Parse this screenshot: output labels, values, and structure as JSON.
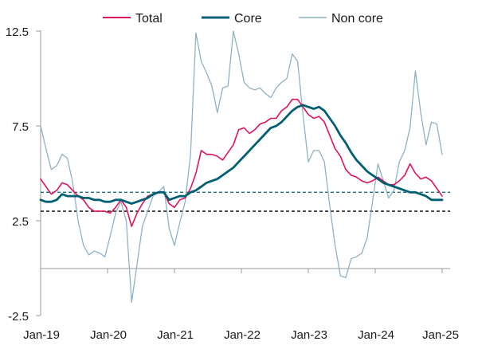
{
  "chart_data": {
    "type": "line",
    "title": "",
    "xlabel": "",
    "ylabel": "",
    "x_start": "2019-01",
    "x_end": "2025-01",
    "x_ticks": [
      "Jan-19",
      "Jan-20",
      "Jan-21",
      "Jan-22",
      "Jan-23",
      "Jan-24",
      "Jan-25"
    ],
    "y_ticks": [
      "12.5",
      "7.5",
      "2.5",
      "-2.5"
    ],
    "y_tick_values": [
      12.5,
      7.5,
      2.5,
      -2.5
    ],
    "ylim": [
      -2.5,
      12.5
    ],
    "legend": "top",
    "grid": false,
    "colors": {
      "total": "#e0115f",
      "core": "#005f73",
      "non_core": "#8fb1c4",
      "dashed_teal": "#1f6f7f",
      "dashed_black": "#000000"
    },
    "reference_lines": [
      {
        "y": 4.0,
        "style": "dashed",
        "color": "#1f6f7f"
      },
      {
        "y": 3.0,
        "style": "dashed",
        "color": "#000000"
      }
    ],
    "series": [
      {
        "name": "Total",
        "color": "#e0115f",
        "values": [
          4.7,
          4.3,
          3.9,
          4.1,
          4.5,
          4.4,
          4.1,
          3.8,
          3.6,
          3.2,
          3.0,
          3.0,
          3.0,
          2.9,
          3.2,
          3.6,
          3.2,
          2.2,
          2.9,
          3.4,
          3.8,
          3.9,
          4.0,
          4.0,
          3.4,
          3.2,
          3.6,
          3.7,
          4.2,
          5.0,
          6.2,
          6.0,
          6.0,
          5.9,
          5.7,
          6.1,
          6.5,
          7.3,
          7.4,
          7.1,
          7.3,
          7.6,
          7.7,
          7.9,
          7.9,
          8.3,
          8.5,
          8.9,
          8.9,
          8.5,
          8.1,
          7.9,
          8.0,
          7.7,
          7.0,
          6.3,
          5.9,
          5.2,
          4.9,
          4.8,
          4.6,
          4.5,
          4.6,
          4.8,
          4.6,
          4.4,
          4.4,
          4.6,
          4.9,
          5.5,
          5.0,
          4.7,
          4.8,
          4.6,
          4.2,
          3.8
        ]
      },
      {
        "name": "Core",
        "color": "#005f73",
        "values": [
          3.6,
          3.5,
          3.5,
          3.6,
          3.9,
          3.8,
          3.8,
          3.8,
          3.7,
          3.7,
          3.6,
          3.6,
          3.5,
          3.5,
          3.6,
          3.6,
          3.5,
          3.4,
          3.5,
          3.6,
          3.7,
          3.9,
          4.0,
          4.0,
          3.6,
          3.7,
          3.8,
          3.8,
          4.0,
          4.1,
          4.3,
          4.5,
          4.6,
          4.7,
          4.9,
          5.1,
          5.3,
          5.6,
          5.9,
          6.2,
          6.5,
          6.8,
          7.1,
          7.4,
          7.5,
          7.7,
          8.0,
          8.3,
          8.5,
          8.6,
          8.5,
          8.4,
          8.5,
          8.3,
          7.9,
          7.5,
          7.0,
          6.6,
          6.1,
          5.7,
          5.4,
          5.1,
          4.9,
          4.7,
          4.5,
          4.4,
          4.3,
          4.2,
          4.1,
          4.0,
          4.0,
          3.9,
          3.8,
          3.6,
          3.6,
          3.6
        ]
      },
      {
        "name": "Non core",
        "color": "#8fb1c4",
        "values": [
          7.5,
          6.3,
          5.2,
          5.4,
          6.0,
          5.8,
          4.5,
          2.5,
          1.2,
          0.7,
          0.9,
          0.8,
          0.6,
          1.7,
          2.9,
          3.5,
          2.5,
          -1.8,
          0.2,
          2.2,
          3.0,
          3.8,
          4.0,
          4.3,
          2.1,
          1.2,
          2.4,
          3.5,
          6.0,
          12.4,
          10.9,
          10.3,
          9.6,
          8.2,
          9.5,
          9.6,
          12.5,
          11.3,
          9.8,
          9.5,
          9.4,
          9.5,
          9.2,
          9.0,
          9.5,
          9.8,
          10.0,
          11.3,
          10.9,
          8.1,
          5.6,
          6.2,
          6.2,
          5.6,
          3.3,
          1.2,
          -0.4,
          -0.5,
          0.5,
          0.6,
          0.8,
          1.6,
          3.5,
          5.5,
          4.6,
          3.7,
          4.1,
          5.6,
          6.2,
          7.4,
          10.4,
          8.2,
          6.5,
          7.7,
          7.6,
          6.0
        ]
      }
    ]
  }
}
